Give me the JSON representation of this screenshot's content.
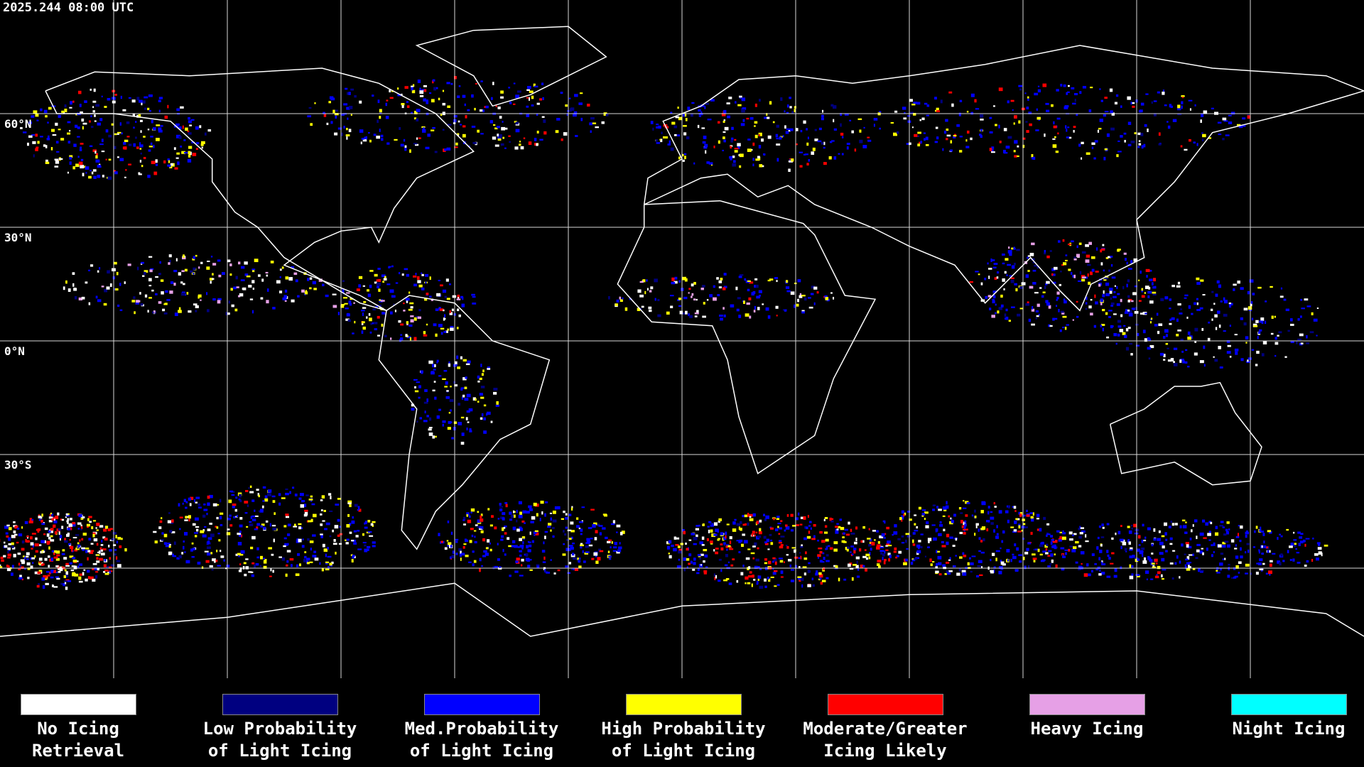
{
  "timestamp": "2025.244 08:00 UTC",
  "latitude_labels": [
    {
      "text": "60°N",
      "lat": 60
    },
    {
      "text": "30°N",
      "lat": 30
    },
    {
      "text": "0°N",
      "lat": 0
    },
    {
      "text": "30°S",
      "lat": -30
    }
  ],
  "legend": [
    {
      "color": "#ffffff",
      "lines": [
        "No Icing",
        "Retrieval"
      ]
    },
    {
      "color": "#000080",
      "lines": [
        "Low Probability",
        "of Light Icing"
      ]
    },
    {
      "color": "#0000ff",
      "lines": [
        "Med.Probability",
        "of Light Icing"
      ]
    },
    {
      "color": "#ffff00",
      "lines": [
        "High Probability",
        "of Light Icing"
      ]
    },
    {
      "color": "#ff0000",
      "lines": [
        "Moderate/Greater",
        "Icing Likely"
      ]
    },
    {
      "color": "#e6a0e6",
      "lines": [
        "Heavy Icing"
      ]
    },
    {
      "color": "#00ffff",
      "lines": [
        "Night Icing"
      ]
    }
  ]
}
